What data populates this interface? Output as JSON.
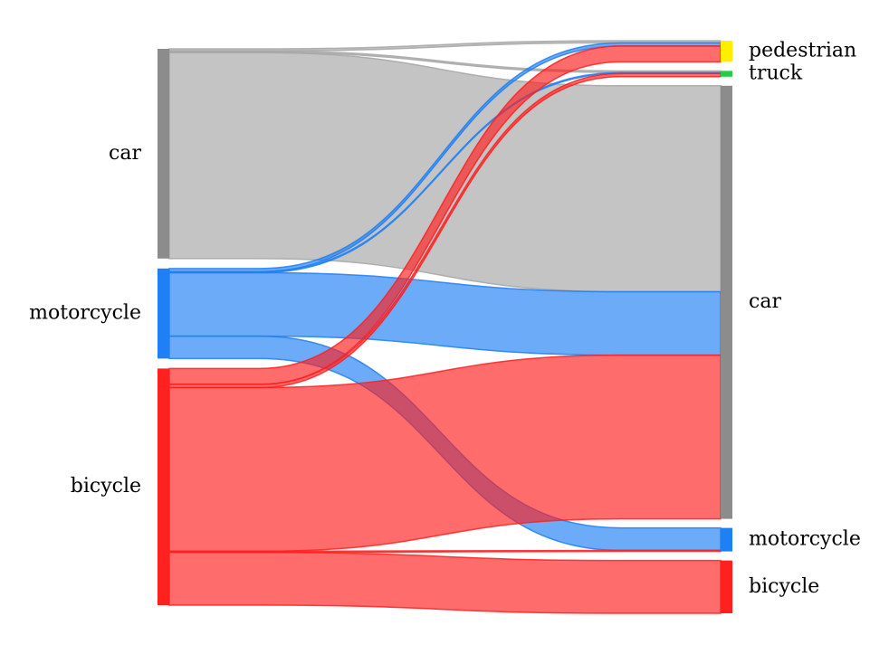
{
  "chart_data": {
    "type": "sankey",
    "title": "",
    "left_nodes": [
      {
        "id": "car_L",
        "label": "car",
        "color": "#8c8c8c"
      },
      {
        "id": "motorcycle_L",
        "label": "motorcycle",
        "color": "#1f7ff5"
      },
      {
        "id": "bicycle_L",
        "label": "bicycle",
        "color": "#ff2020"
      }
    ],
    "right_nodes": [
      {
        "id": "pedestrian_R",
        "label": "pedestrian",
        "color": "#ffee00"
      },
      {
        "id": "truck_R",
        "label": "truck",
        "color": "#22cc44"
      },
      {
        "id": "car_R",
        "label": "car",
        "color": "#8c8c8c"
      },
      {
        "id": "motorcycle_R",
        "label": "motorcycle",
        "color": "#1f7ff5"
      },
      {
        "id": "bicycle_R",
        "label": "bicycle",
        "color": "#ff2020"
      }
    ],
    "flows": [
      {
        "source": "car_L",
        "target": "pedestrian_R",
        "value": 0.8,
        "color": "#a6a6a6"
      },
      {
        "source": "car_L",
        "target": "truck_R",
        "value": 0.6,
        "color": "#a6a6a6"
      },
      {
        "source": "car_L",
        "target": "car_R",
        "value": 78,
        "color": "#a6a6a6"
      },
      {
        "source": "motorcycle_L",
        "target": "pedestrian_R",
        "value": 1.2,
        "color": "#1f7ff5"
      },
      {
        "source": "motorcycle_L",
        "target": "truck_R",
        "value": 0.4,
        "color": "#1f7ff5"
      },
      {
        "source": "motorcycle_L",
        "target": "car_R",
        "value": 24,
        "color": "#1f7ff5"
      },
      {
        "source": "motorcycle_L",
        "target": "motorcycle_R",
        "value": 8.5,
        "color": "#1f7ff5"
      },
      {
        "source": "bicycle_L",
        "target": "pedestrian_R",
        "value": 6,
        "color": "#ff2020"
      },
      {
        "source": "bicycle_L",
        "target": "truck_R",
        "value": 1.2,
        "color": "#ff2020"
      },
      {
        "source": "bicycle_L",
        "target": "car_R",
        "value": 62,
        "color": "#ff2020"
      },
      {
        "source": "bicycle_L",
        "target": "motorcycle_R",
        "value": 0.4,
        "color": "#ff2020"
      },
      {
        "source": "bicycle_L",
        "target": "bicycle_R",
        "value": 20,
        "color": "#ff2020"
      }
    ]
  }
}
